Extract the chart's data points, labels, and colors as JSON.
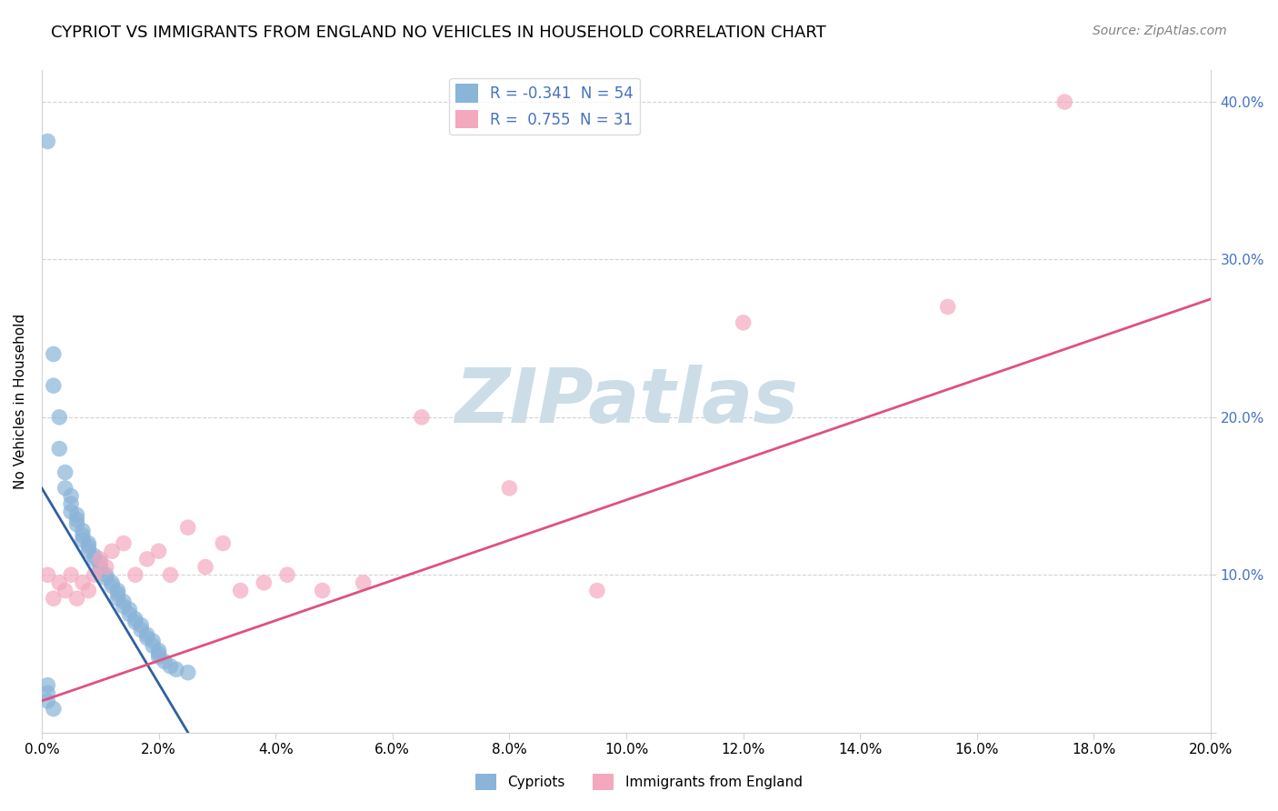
{
  "title": "CYPRIOT VS IMMIGRANTS FROM ENGLAND NO VEHICLES IN HOUSEHOLD CORRELATION CHART",
  "source": "Source: ZipAtlas.com",
  "ylabel": "No Vehicles in Household",
  "xlim": [
    0.0,
    0.2
  ],
  "ylim": [
    0.0,
    0.42
  ],
  "blue_color": "#8ab4d8",
  "pink_color": "#f4a8be",
  "blue_line_color": "#3060a0",
  "pink_line_color": "#e05080",
  "R_blue": -0.341,
  "N_blue": 54,
  "R_pink": 0.755,
  "N_pink": 31,
  "watermark": "ZIPatlas",
  "watermark_color": "#ccdde8",
  "blue_scatter_x": [
    0.001,
    0.002,
    0.002,
    0.003,
    0.003,
    0.004,
    0.004,
    0.005,
    0.005,
    0.005,
    0.006,
    0.006,
    0.006,
    0.007,
    0.007,
    0.007,
    0.008,
    0.008,
    0.008,
    0.009,
    0.009,
    0.01,
    0.01,
    0.01,
    0.011,
    0.011,
    0.012,
    0.012,
    0.013,
    0.013,
    0.013,
    0.014,
    0.014,
    0.015,
    0.015,
    0.016,
    0.016,
    0.017,
    0.017,
    0.018,
    0.018,
    0.019,
    0.019,
    0.02,
    0.02,
    0.02,
    0.021,
    0.022,
    0.023,
    0.025,
    0.001,
    0.001,
    0.001,
    0.002
  ],
  "blue_scatter_y": [
    0.375,
    0.24,
    0.22,
    0.2,
    0.18,
    0.165,
    0.155,
    0.15,
    0.145,
    0.14,
    0.138,
    0.135,
    0.132,
    0.128,
    0.125,
    0.122,
    0.12,
    0.118,
    0.115,
    0.112,
    0.11,
    0.108,
    0.105,
    0.103,
    0.1,
    0.098,
    0.095,
    0.093,
    0.09,
    0.088,
    0.085,
    0.083,
    0.08,
    0.078,
    0.075,
    0.072,
    0.07,
    0.068,
    0.065,
    0.062,
    0.06,
    0.058,
    0.055,
    0.052,
    0.05,
    0.048,
    0.045,
    0.042,
    0.04,
    0.038,
    0.03,
    0.025,
    0.02,
    0.015
  ],
  "pink_scatter_x": [
    0.001,
    0.002,
    0.003,
    0.004,
    0.005,
    0.006,
    0.007,
    0.008,
    0.009,
    0.01,
    0.011,
    0.012,
    0.014,
    0.016,
    0.018,
    0.02,
    0.022,
    0.025,
    0.028,
    0.031,
    0.034,
    0.038,
    0.042,
    0.048,
    0.055,
    0.065,
    0.08,
    0.095,
    0.12,
    0.155,
    0.175
  ],
  "pink_scatter_y": [
    0.1,
    0.085,
    0.095,
    0.09,
    0.1,
    0.085,
    0.095,
    0.09,
    0.1,
    0.11,
    0.105,
    0.115,
    0.12,
    0.1,
    0.11,
    0.115,
    0.1,
    0.13,
    0.105,
    0.12,
    0.09,
    0.095,
    0.1,
    0.09,
    0.095,
    0.2,
    0.155,
    0.09,
    0.26,
    0.27,
    0.4
  ],
  "blue_trendline_x": [
    0.0,
    0.025
  ],
  "blue_trendline_y": [
    0.155,
    0.0
  ],
  "pink_trendline_x": [
    0.0,
    0.2
  ],
  "pink_trendline_y": [
    0.02,
    0.275
  ]
}
